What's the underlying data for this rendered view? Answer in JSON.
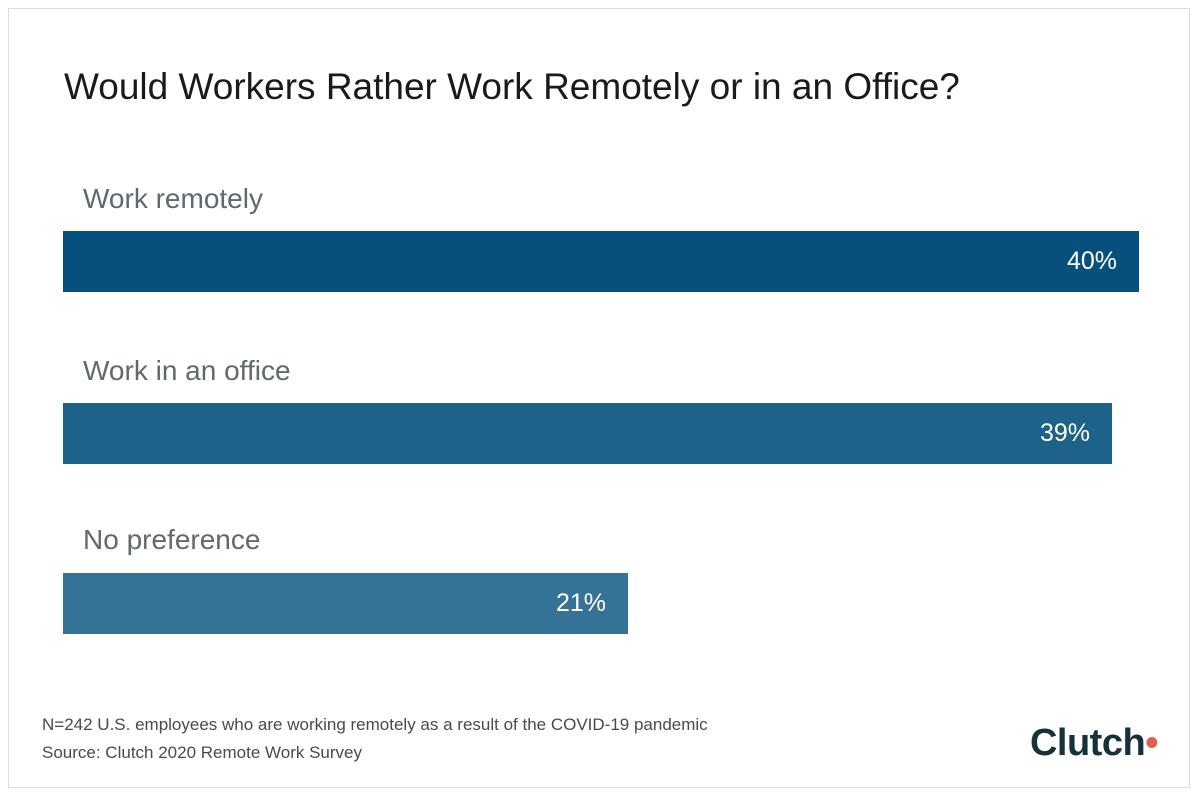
{
  "chart_data": {
    "type": "bar",
    "orientation": "horizontal",
    "title": "Would Workers Rather Work Remotely or in an Office?",
    "categories": [
      "Work remotely",
      "Work in an office",
      "No preference"
    ],
    "values": [
      40,
      39,
      21
    ],
    "value_labels": [
      "40%",
      "39%",
      "21%"
    ],
    "xlim": [
      0,
      40
    ],
    "grid": false,
    "colors": [
      "#07507d",
      "#1d6289",
      "#357396"
    ]
  },
  "footnotes": [
    "N=242 U.S. employees who are working remotely as a result of the COVID-19 pandemic",
    "Source: Clutch 2020 Remote Work Survey"
  ],
  "brand": {
    "name_main": "Clutc",
    "name_end": "h",
    "accent": "#e25f4e"
  }
}
